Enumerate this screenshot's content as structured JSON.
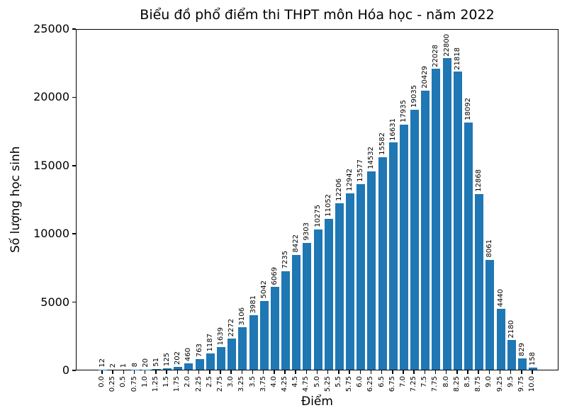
{
  "chart_data": {
    "type": "bar",
    "title": "Biểu đồ phổ điểm thi THPT môn Hóa học - năm 2022",
    "xlabel": "Điểm",
    "ylabel": "Số lượng học sinh",
    "categories": [
      "0.0",
      "0.25",
      "0.5",
      "0.75",
      "1.0",
      "1.25",
      "1.5",
      "1.75",
      "2.0",
      "2.25",
      "2.5",
      "2.75",
      "3.0",
      "3.25",
      "3.5",
      "3.75",
      "4.0",
      "4.25",
      "4.5",
      "4.75",
      "5.0",
      "5.25",
      "5.5",
      "5.75",
      "6.0",
      "6.25",
      "6.5",
      "6.75",
      "7.0",
      "7.25",
      "7.5",
      "7.75",
      "8.0",
      "8.25",
      "8.5",
      "8.75",
      "9.0",
      "9.25",
      "9.5",
      "9.75",
      "10.0"
    ],
    "values": [
      12,
      2,
      1,
      8,
      20,
      51,
      125,
      202,
      460,
      763,
      1187,
      1639,
      2272,
      3106,
      3981,
      5042,
      6069,
      7235,
      8422,
      9303,
      10275,
      11052,
      12206,
      12942,
      13577,
      14532,
      15582,
      16631,
      17935,
      19035,
      20429,
      22028,
      22800,
      21818,
      18092,
      12868,
      8061,
      4440,
      2180,
      829,
      158
    ],
    "ylim": [
      0,
      25000
    ],
    "yticks": [
      "0",
      "5000",
      "10000",
      "15000",
      "20000",
      "25000"
    ],
    "bar_color": "#1f77b4",
    "axis_color": "#000000",
    "background_color": "#ffffff",
    "grid": false,
    "bar_label_rotation": 90,
    "xtick_rotation": 90
  }
}
